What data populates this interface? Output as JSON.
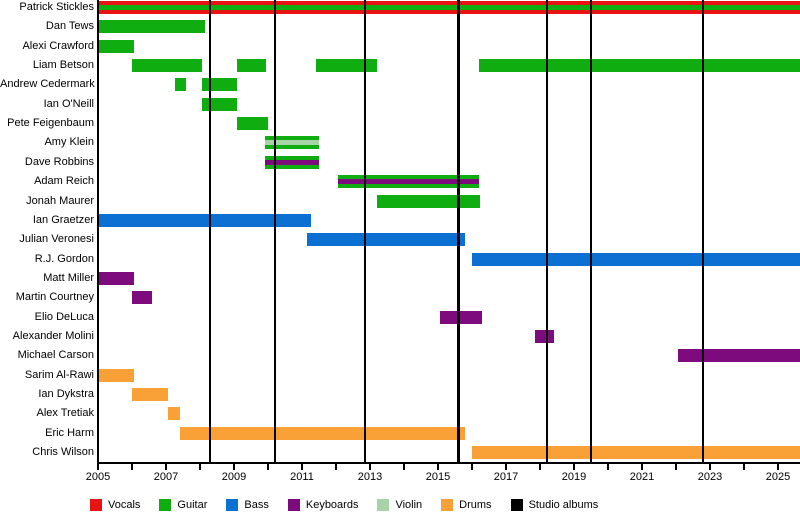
{
  "chart_data": {
    "type": "timeline",
    "description": "Band member tenure timeline with studio album release markers",
    "axis": {
      "unit": "year",
      "min": 2005,
      "max": 2025,
      "labeled_ticks": [
        2005,
        2007,
        2009,
        2011,
        2013,
        2015,
        2017,
        2019,
        2021,
        2023,
        2025
      ],
      "minor_tick_step": 1,
      "right_edge_value": 2025.7,
      "grid": "off",
      "legend_position": "bottom"
    },
    "colors": {
      "vocals": "#e81414",
      "guitar": "#10ad10",
      "bass": "#0b70d1",
      "keyboards": "#7d0b7d",
      "violin": "#a8d3a8",
      "drums": "#f9a136",
      "albums": "#000000"
    },
    "legend": [
      {
        "label": "Vocals",
        "role": "vocals"
      },
      {
        "label": "Guitar",
        "role": "guitar"
      },
      {
        "label": "Bass",
        "role": "bass"
      },
      {
        "label": "Keyboards",
        "role": "keyboards"
      },
      {
        "label": "Violin",
        "role": "violin"
      },
      {
        "label": "Drums",
        "role": "drums"
      },
      {
        "label": "Studio albums",
        "role": "albums"
      }
    ],
    "albums": [
      2008.3,
      2010.2,
      2012.85,
      2015.6,
      2018.2,
      2019.5,
      2022.8
    ],
    "members": [
      {
        "name": "Patrick Stickles",
        "bars": [
          {
            "start": 2005,
            "end": 2025.7,
            "role": "vocals",
            "stripe": "guitar"
          }
        ]
      },
      {
        "name": "Dan Tews",
        "bars": [
          {
            "start": 2005,
            "end": 2008.15,
            "role": "guitar"
          }
        ]
      },
      {
        "name": "Alexi Crawford",
        "bars": [
          {
            "start": 2005,
            "end": 2006.05,
            "role": "guitar"
          }
        ]
      },
      {
        "name": "Liam Betson",
        "bars": [
          {
            "start": 2006,
            "end": 2008.05,
            "role": "guitar"
          },
          {
            "start": 2009.1,
            "end": 2009.95,
            "role": "guitar"
          },
          {
            "start": 2011.4,
            "end": 2013.2,
            "role": "guitar"
          },
          {
            "start": 2016.2,
            "end": 2025.7,
            "role": "guitar"
          }
        ]
      },
      {
        "name": "Andrew Cedermark",
        "bars": [
          {
            "start": 2007.25,
            "end": 2007.6,
            "role": "guitar"
          },
          {
            "start": 2008.05,
            "end": 2009.1,
            "role": "guitar"
          }
        ]
      },
      {
        "name": "Ian O'Neill",
        "bars": [
          {
            "start": 2008.05,
            "end": 2009.1,
            "role": "guitar"
          }
        ]
      },
      {
        "name": "Pete Feigenbaum",
        "bars": [
          {
            "start": 2009.1,
            "end": 2010.0,
            "role": "guitar"
          }
        ]
      },
      {
        "name": "Amy Klein",
        "bars": [
          {
            "start": 2009.9,
            "end": 2011.5,
            "role": "guitar",
            "stripe": "violin"
          }
        ]
      },
      {
        "name": "Dave Robbins",
        "bars": [
          {
            "start": 2009.9,
            "end": 2011.5,
            "role": "guitar",
            "stripe": "keyboards"
          }
        ]
      },
      {
        "name": "Adam Reich",
        "bars": [
          {
            "start": 2012.05,
            "end": 2016.2,
            "role": "guitar",
            "stripe": "keyboards"
          }
        ]
      },
      {
        "name": "Jonah Maurer",
        "bars": [
          {
            "start": 2013.2,
            "end": 2016.25,
            "role": "guitar"
          }
        ]
      },
      {
        "name": "Ian Graetzer",
        "bars": [
          {
            "start": 2005,
            "end": 2011.25,
            "role": "bass"
          }
        ]
      },
      {
        "name": "Julian Veronesi",
        "bars": [
          {
            "start": 2011.15,
            "end": 2015.8,
            "role": "bass"
          }
        ]
      },
      {
        "name": "R.J. Gordon",
        "bars": [
          {
            "start": 2016.0,
            "end": 2025.7,
            "role": "bass"
          }
        ]
      },
      {
        "name": "Matt Miller",
        "bars": [
          {
            "start": 2005,
            "end": 2006.05,
            "role": "keyboards"
          }
        ]
      },
      {
        "name": "Martin Courtney",
        "bars": [
          {
            "start": 2006.0,
            "end": 2006.6,
            "role": "keyboards"
          }
        ]
      },
      {
        "name": "Elio DeLuca",
        "bars": [
          {
            "start": 2015.05,
            "end": 2016.3,
            "role": "keyboards"
          }
        ]
      },
      {
        "name": "Alexander Molini",
        "bars": [
          {
            "start": 2017.85,
            "end": 2018.4,
            "role": "keyboards"
          }
        ]
      },
      {
        "name": "Michael Carson",
        "bars": [
          {
            "start": 2022.05,
            "end": 2025.7,
            "role": "keyboards"
          }
        ]
      },
      {
        "name": "Sarim Al-Rawi",
        "bars": [
          {
            "start": 2005,
            "end": 2006.05,
            "role": "drums"
          }
        ]
      },
      {
        "name": "Ian Dykstra",
        "bars": [
          {
            "start": 2006.0,
            "end": 2007.05,
            "role": "drums"
          }
        ]
      },
      {
        "name": "Alex Tretiak",
        "bars": [
          {
            "start": 2007.05,
            "end": 2007.4,
            "role": "drums"
          }
        ]
      },
      {
        "name": "Eric Harm",
        "bars": [
          {
            "start": 2007.4,
            "end": 2015.8,
            "role": "drums"
          }
        ]
      },
      {
        "name": "Chris Wilson",
        "bars": [
          {
            "start": 2016.0,
            "end": 2025.7,
            "role": "drums"
          }
        ]
      }
    ]
  }
}
